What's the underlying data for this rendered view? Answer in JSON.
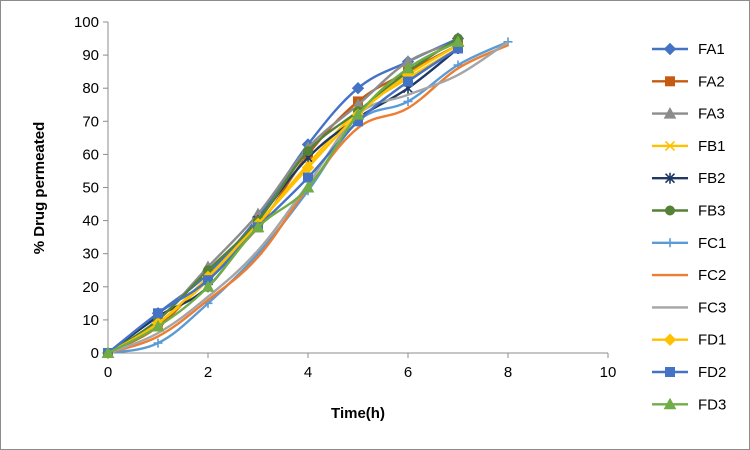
{
  "chart_data": {
    "type": "line",
    "title": "",
    "xlabel": "Time(h)",
    "ylabel": "% Drug permeated",
    "xlim": [
      0,
      10
    ],
    "ylim": [
      0,
      100
    ],
    "xticks": [
      0,
      2,
      4,
      6,
      8,
      10
    ],
    "yticks": [
      0,
      10,
      20,
      30,
      40,
      50,
      60,
      70,
      80,
      90,
      100
    ],
    "grid": false,
    "legend": "right",
    "x": [
      0,
      1,
      2,
      3,
      4,
      5,
      6,
      7,
      8
    ],
    "series": [
      {
        "name": "FA1",
        "color": "#4472c4",
        "marker": "diamond",
        "x": [
          0,
          1,
          2,
          3,
          4,
          5,
          6,
          7
        ],
        "values": [
          0,
          12,
          24,
          41,
          63,
          80,
          88,
          95
        ]
      },
      {
        "name": "FA2",
        "color": "#c55a11",
        "marker": "square",
        "x": [
          0,
          1,
          2,
          3,
          4,
          5,
          6,
          7
        ],
        "values": [
          0,
          8,
          23,
          38,
          60,
          76,
          85,
          93
        ]
      },
      {
        "name": "FA3",
        "color": "#8c8c8c",
        "marker": "triangle",
        "x": [
          0,
          1,
          2,
          3,
          4,
          5,
          6,
          7
        ],
        "values": [
          0,
          10,
          26,
          42,
          62,
          75,
          88,
          94
        ]
      },
      {
        "name": "FB1",
        "color": "#ffc000",
        "marker": "x",
        "x": [
          0,
          1,
          2,
          3,
          4,
          5,
          6,
          7
        ],
        "values": [
          0,
          9,
          22,
          39,
          57,
          73,
          83,
          92
        ]
      },
      {
        "name": "FB2",
        "color": "#1f3864",
        "marker": "star",
        "x": [
          0,
          1,
          2,
          3,
          4,
          5,
          6,
          7
        ],
        "values": [
          0,
          11,
          20,
          40,
          59,
          71,
          80,
          92
        ]
      },
      {
        "name": "FB3",
        "color": "#548235",
        "marker": "circle",
        "x": [
          0,
          1,
          2,
          3,
          4,
          5,
          6,
          7
        ],
        "values": [
          0,
          10,
          25,
          40,
          61,
          73,
          85,
          95
        ]
      },
      {
        "name": "FC1",
        "color": "#5b9bd5",
        "marker": "plus",
        "x": [
          0,
          1,
          2,
          3,
          4,
          5,
          6,
          7,
          8
        ],
        "values": [
          0,
          3,
          15,
          30,
          49,
          70,
          76,
          87,
          94
        ]
      },
      {
        "name": "FC2",
        "color": "#ed7d31",
        "marker": "none",
        "x": [
          0,
          1,
          2,
          3,
          4,
          5,
          6,
          7,
          8
        ],
        "values": [
          0,
          5,
          16,
          29,
          50,
          68,
          74,
          86,
          93
        ]
      },
      {
        "name": "FC3",
        "color": "#a5a5a5",
        "marker": "none",
        "x": [
          0,
          1,
          2,
          3,
          4,
          5,
          6,
          7,
          8
        ],
        "values": [
          0,
          6,
          17,
          31,
          51,
          72,
          78,
          84,
          94
        ]
      },
      {
        "name": "FD1",
        "color": "#ffc000",
        "marker": "diamond",
        "x": [
          0,
          1,
          2,
          3,
          4,
          5,
          6,
          7
        ],
        "values": [
          0,
          9,
          23,
          39,
          56,
          72,
          84,
          93
        ]
      },
      {
        "name": "FD2",
        "color": "#4472c4",
        "marker": "square",
        "x": [
          0,
          1,
          2,
          3,
          4,
          5,
          6,
          7
        ],
        "values": [
          0,
          12,
          22,
          38,
          53,
          70,
          82,
          92
        ]
      },
      {
        "name": "FD3",
        "color": "#70ad47",
        "marker": "triangle",
        "x": [
          0,
          1,
          2,
          3,
          4,
          5,
          6,
          7
        ],
        "values": [
          0,
          8,
          20,
          38,
          50,
          72,
          86,
          94
        ]
      }
    ]
  }
}
